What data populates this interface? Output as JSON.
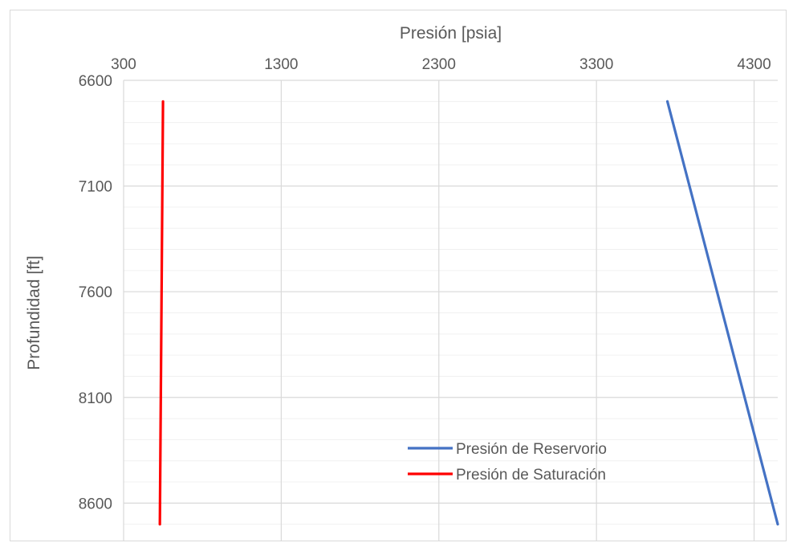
{
  "chart_data": {
    "type": "line",
    "xlabel": "Presión [psia]",
    "ylabel": "Profundidad [ft]",
    "x_axis_position": "top",
    "y_axis_inverted": true,
    "xlim": [
      300,
      4450
    ],
    "ylim": [
      6600,
      8800
    ],
    "x_ticks": [
      300,
      1300,
      2300,
      3300,
      4300
    ],
    "y_ticks": [
      6600,
      7100,
      7600,
      8100,
      8600
    ],
    "x_minor_step": 100,
    "y_minor_step": 100,
    "grid": true,
    "legend_position": "bottom-center",
    "series": [
      {
        "name": "Presión de Reservorio",
        "color": "#4472C4",
        "points": [
          [
            3750,
            6700
          ],
          [
            4450,
            8700
          ]
        ]
      },
      {
        "name": "Presión de Saturación",
        "color": "#FF0000",
        "points": [
          [
            550,
            6700
          ],
          [
            530,
            8700
          ]
        ]
      }
    ]
  }
}
